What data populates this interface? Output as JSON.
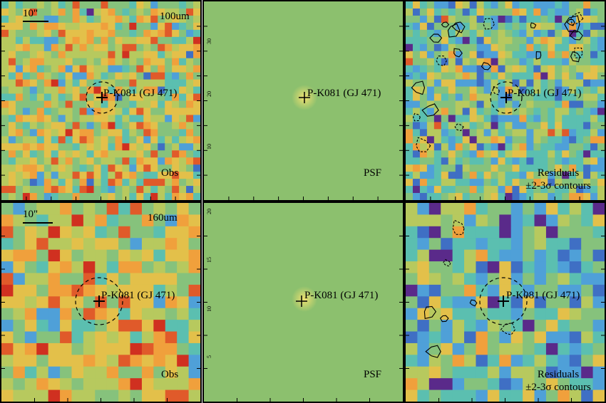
{
  "figure": {
    "target_label": "P-K081 (GJ 471)",
    "scale_label": "10\"",
    "residual_line1": "Residuals",
    "residual_line2": "±2-3σ contours",
    "rows": [
      {
        "band": "100um",
        "obs_label": "Obs",
        "psf_label": "PSF",
        "right_ticks": [
          "30",
          "20",
          "10"
        ]
      },
      {
        "band": "160um",
        "obs_label": "Obs",
        "psf_label": "PSF",
        "right_ticks": [
          "20",
          "15",
          "10",
          "5"
        ]
      }
    ]
  },
  "colors": {
    "psf_background": "#8cc06e",
    "palette": [
      "#5a2a8a",
      "#3f6fc4",
      "#4fa0d8",
      "#5bbfb0",
      "#86c27c",
      "#b7c95e",
      "#e3c04a",
      "#f0a03c",
      "#e05a2a",
      "#d03020"
    ]
  }
}
